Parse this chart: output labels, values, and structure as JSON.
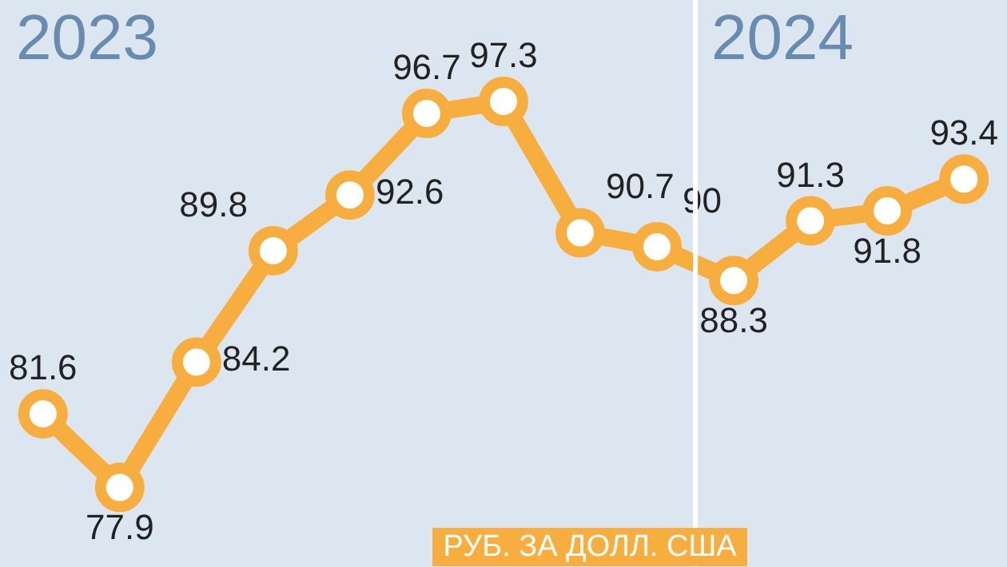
{
  "chart_data": {
    "type": "line",
    "categories": [
      null,
      null,
      null,
      null,
      null,
      null,
      null,
      null,
      null,
      null,
      null,
      null,
      null
    ],
    "series": [
      {
        "color": "#f7ae3e",
        "values": [
          81.6,
          77.9,
          84.2,
          89.8,
          92.6,
          96.7,
          97.3,
          90.7,
          90,
          88.3,
          91.3,
          91.8,
          93.4
        ]
      }
    ],
    "data_labels": true,
    "marker": "circle",
    "line_style": "solid",
    "legend": false,
    "grid": false,
    "tick_labels": false,
    "ylim": [
      73.9,
      102.4
    ],
    "annotations": [
      "2023",
      "2024",
      "РУБ. ЗА ДОЛЛ. США"
    ]
  }
}
